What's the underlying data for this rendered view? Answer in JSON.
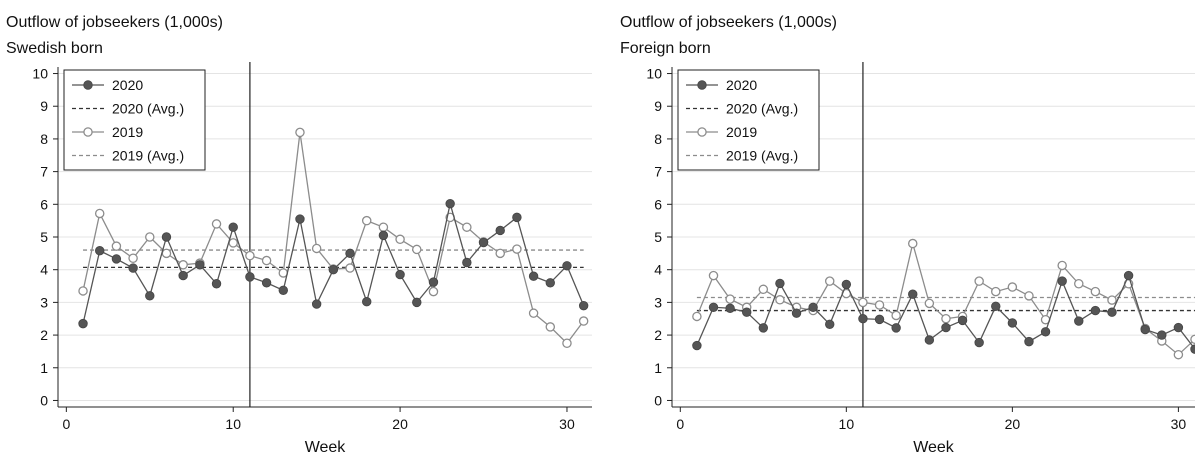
{
  "chart_data": [
    {
      "type": "line",
      "title": "Outflow of jobseekers (1,000s)",
      "subtitle": "Swedish born",
      "xlabel": "Week",
      "ylabel": "",
      "xlim": [
        -0.5,
        31.5
      ],
      "ylim": [
        -0.2,
        10.2
      ],
      "xticks": [
        0,
        10,
        20,
        30
      ],
      "yticks": [
        0,
        1,
        2,
        3,
        4,
        5,
        6,
        7,
        8,
        9,
        10
      ],
      "grid": true,
      "vline_x": 11,
      "legend_position": "top-left",
      "x": [
        1,
        2,
        3,
        4,
        5,
        6,
        7,
        8,
        9,
        10,
        11,
        12,
        13,
        14,
        15,
        16,
        17,
        18,
        19,
        20,
        21,
        22,
        23,
        24,
        25,
        26,
        27,
        28,
        29,
        30,
        31
      ],
      "series": [
        {
          "name": "2020",
          "color": "#555555",
          "style": "solid-filled",
          "values": [
            2.35,
            4.58,
            4.33,
            4.05,
            3.2,
            5.0,
            3.82,
            4.15,
            3.57,
            5.3,
            3.78,
            3.6,
            3.37,
            5.55,
            2.95,
            4.0,
            4.5,
            3.02,
            5.05,
            3.85,
            3.0,
            3.62,
            6.02,
            4.22,
            4.83,
            5.2,
            5.6,
            3.8,
            3.6,
            4.12,
            2.9
          ]
        },
        {
          "name": "2020 (Avg.)",
          "color": "#333333",
          "style": "dashed",
          "value": 4.07,
          "x_range": [
            1,
            31
          ]
        },
        {
          "name": "2019",
          "color": "#8c8c8c",
          "style": "solid-open",
          "values": [
            3.35,
            5.72,
            4.72,
            4.35,
            5.0,
            4.5,
            4.15,
            4.2,
            5.4,
            4.82,
            4.43,
            4.28,
            3.9,
            8.2,
            4.65,
            4.02,
            4.05,
            5.5,
            5.3,
            4.93,
            4.62,
            3.33,
            5.6,
            5.3,
            4.85,
            4.5,
            4.63,
            2.67,
            2.25,
            1.75,
            2.43
          ]
        },
        {
          "name": "2019 (Avg.)",
          "color": "#8c8c8c",
          "style": "dashed",
          "value": 4.6,
          "x_range": [
            1,
            31
          ]
        }
      ]
    },
    {
      "type": "line",
      "title": "Outflow of jobseekers (1,000s)",
      "subtitle": "Foreign born",
      "xlabel": "Week",
      "ylabel": "",
      "xlim": [
        -0.5,
        31.0
      ],
      "ylim": [
        -0.2,
        10.2
      ],
      "xticks": [
        0,
        10,
        20,
        30
      ],
      "yticks": [
        0,
        1,
        2,
        3,
        4,
        5,
        6,
        7,
        8,
        9,
        10
      ],
      "grid": true,
      "vline_x": 11,
      "legend_position": "top-left",
      "x": [
        1,
        2,
        3,
        4,
        5,
        6,
        7,
        8,
        9,
        10,
        11,
        12,
        13,
        14,
        15,
        16,
        17,
        18,
        19,
        20,
        21,
        22,
        23,
        24,
        25,
        26,
        27,
        28,
        29,
        30,
        31
      ],
      "series": [
        {
          "name": "2020",
          "color": "#555555",
          "style": "solid-filled",
          "values": [
            1.68,
            2.85,
            2.82,
            2.7,
            2.22,
            3.58,
            2.67,
            2.85,
            2.33,
            3.55,
            2.5,
            2.48,
            2.22,
            3.25,
            1.85,
            2.23,
            2.45,
            1.77,
            2.88,
            2.37,
            1.8,
            2.1,
            3.65,
            2.43,
            2.75,
            2.7,
            3.82,
            2.17,
            2.0,
            2.23,
            1.57
          ]
        },
        {
          "name": "2020 (Avg.)",
          "color": "#333333",
          "style": "dashed",
          "value": 2.75,
          "x_range": [
            1,
            31
          ]
        },
        {
          "name": "2019",
          "color": "#8c8c8c",
          "style": "solid-open",
          "values": [
            2.57,
            3.82,
            3.1,
            2.85,
            3.4,
            3.08,
            2.85,
            2.75,
            3.65,
            3.27,
            3.0,
            2.92,
            2.6,
            4.8,
            2.97,
            2.5,
            2.57,
            3.65,
            3.33,
            3.47,
            3.2,
            2.47,
            4.13,
            3.57,
            3.33,
            3.07,
            3.57,
            2.2,
            1.82,
            1.4,
            1.87
          ]
        },
        {
          "name": "2019 (Avg.)",
          "color": "#8c8c8c",
          "style": "dashed",
          "value": 3.15,
          "x_range": [
            1,
            31
          ]
        }
      ]
    }
  ]
}
